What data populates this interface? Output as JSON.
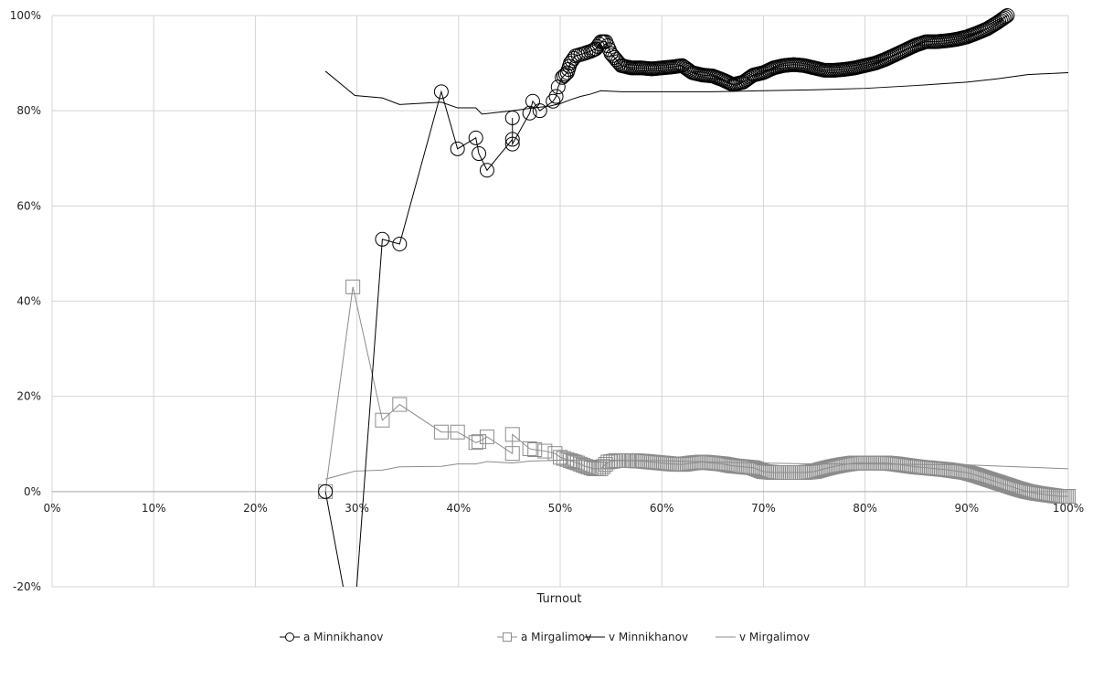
{
  "chart_data": {
    "type": "line",
    "title": "",
    "xlabel": "Turnout",
    "ylabel": "",
    "xlim": [
      0,
      100
    ],
    "ylim": [
      -20,
      100
    ],
    "x_ticks": [
      "0%",
      "10%",
      "20%",
      "30%",
      "40%",
      "50%",
      "60%",
      "70%",
      "80%",
      "90%",
      "100%"
    ],
    "y_ticks": [
      "-20%",
      "0%",
      "20%",
      "40%",
      "60%",
      "80%",
      "100%"
    ],
    "grid": true,
    "legend_position": "bottom",
    "series": [
      {
        "name": "a Minnikhanov",
        "color": "#000000",
        "marker": "circle",
        "points": [
          [
            26.9,
            0
          ],
          [
            29.6,
            -31
          ],
          [
            32.5,
            53
          ],
          [
            34.2,
            52
          ],
          [
            38.3,
            84
          ],
          [
            39.9,
            72
          ],
          [
            41.7,
            74.3
          ],
          [
            42,
            71
          ],
          [
            42.8,
            67.5
          ],
          [
            45.3,
            74
          ],
          [
            45.3,
            78.5
          ],
          [
            45.3,
            73
          ],
          [
            47,
            79.5
          ],
          [
            47.3,
            82
          ],
          [
            48,
            80
          ],
          [
            49.3,
            82
          ],
          [
            49.6,
            83
          ],
          [
            49.8,
            85
          ],
          [
            50.2,
            87
          ],
          [
            50.7,
            88
          ],
          [
            51,
            90
          ],
          [
            51.5,
            91.5
          ],
          [
            52.3,
            92
          ],
          [
            53,
            92.5
          ],
          [
            53.5,
            93
          ],
          [
            54,
            94.5
          ],
          [
            54.5,
            94.5
          ],
          [
            55,
            92
          ],
          [
            56,
            89.5
          ],
          [
            57,
            89
          ],
          [
            58,
            89
          ],
          [
            59,
            88.8
          ],
          [
            60,
            89
          ],
          [
            61,
            89.2
          ],
          [
            62,
            89.5
          ],
          [
            63,
            88
          ],
          [
            64,
            87.5
          ],
          [
            65,
            87.3
          ],
          [
            66,
            86.5
          ],
          [
            67,
            85.5
          ],
          [
            68,
            86
          ],
          [
            69,
            87.5
          ],
          [
            70,
            88
          ],
          [
            71,
            89
          ],
          [
            72,
            89.5
          ],
          [
            73,
            89.7
          ],
          [
            74,
            89.5
          ],
          [
            75,
            89
          ],
          [
            76,
            88.5
          ],
          [
            77,
            88.5
          ],
          [
            78,
            88.7
          ],
          [
            79,
            89
          ],
          [
            80,
            89.5
          ],
          [
            81,
            90
          ],
          [
            82,
            90.8
          ],
          [
            83,
            91.8
          ],
          [
            84,
            92.8
          ],
          [
            85,
            93.8
          ],
          [
            86,
            94.5
          ],
          [
            87,
            94.5
          ],
          [
            88,
            94.7
          ],
          [
            89,
            95
          ],
          [
            90,
            95.5
          ],
          [
            91,
            96.3
          ],
          [
            92,
            97.2
          ],
          [
            93,
            98.5
          ],
          [
            94,
            100
          ]
        ]
      },
      {
        "name": "a Mirgalimov",
        "color": "#8c8c8c",
        "marker": "square",
        "points": [
          [
            26.9,
            0
          ],
          [
            29.6,
            43
          ],
          [
            32.5,
            15
          ],
          [
            34.2,
            18.3
          ],
          [
            38.3,
            12.5
          ],
          [
            39.9,
            12.5
          ],
          [
            41.7,
            10.3
          ],
          [
            42,
            10.5
          ],
          [
            42.8,
            11.5
          ],
          [
            45.3,
            8
          ],
          [
            45.3,
            12
          ],
          [
            47,
            9
          ],
          [
            47.5,
            8.8
          ],
          [
            48.5,
            8.5
          ],
          [
            49.5,
            8
          ],
          [
            50,
            7.2
          ],
          [
            51,
            6.5
          ],
          [
            51.7,
            6
          ],
          [
            52.5,
            5.3
          ],
          [
            53.3,
            4.8
          ],
          [
            54,
            4.8
          ],
          [
            54.7,
            6.2
          ],
          [
            55.5,
            6.5
          ],
          [
            57,
            6.5
          ],
          [
            58,
            6.4
          ],
          [
            59,
            6.2
          ],
          [
            60,
            6
          ],
          [
            61,
            5.8
          ],
          [
            62,
            5.7
          ],
          [
            63,
            6
          ],
          [
            64,
            6.2
          ],
          [
            65,
            6
          ],
          [
            66,
            5.8
          ],
          [
            67,
            5.4
          ],
          [
            68,
            5.2
          ],
          [
            69,
            5
          ],
          [
            70,
            4.2
          ],
          [
            71,
            4
          ],
          [
            72,
            4
          ],
          [
            73,
            4
          ],
          [
            74,
            4
          ],
          [
            75,
            4.2
          ],
          [
            76,
            4.8
          ],
          [
            77,
            5.3
          ],
          [
            78,
            5.7
          ],
          [
            79,
            6
          ],
          [
            80,
            6
          ],
          [
            81,
            6
          ],
          [
            82,
            6
          ],
          [
            83,
            5.8
          ],
          [
            84,
            5.5
          ],
          [
            85,
            5.2
          ],
          [
            86,
            5
          ],
          [
            87,
            4.8
          ],
          [
            88,
            4.6
          ],
          [
            89,
            4.3
          ],
          [
            90,
            4
          ],
          [
            91,
            3.4
          ],
          [
            92,
            2.7
          ],
          [
            93,
            2
          ],
          [
            94,
            1.3
          ],
          [
            95,
            0.6
          ],
          [
            96,
            0
          ],
          [
            97,
            -0.4
          ],
          [
            98,
            -0.7
          ],
          [
            99,
            -1
          ],
          [
            100,
            -1
          ]
        ]
      },
      {
        "name": "v Minnikhanov",
        "color": "#000000",
        "marker": "none",
        "points": [
          [
            26.9,
            88.3
          ],
          [
            29.8,
            83.2
          ],
          [
            32.5,
            82.7
          ],
          [
            34.2,
            81.3
          ],
          [
            38.3,
            81.8
          ],
          [
            39.9,
            80.6
          ],
          [
            41.7,
            80.6
          ],
          [
            42.3,
            79.3
          ],
          [
            45.3,
            80
          ],
          [
            47,
            80.5
          ],
          [
            49,
            81
          ],
          [
            50,
            81.5
          ],
          [
            51,
            82.3
          ],
          [
            52,
            83
          ],
          [
            53,
            83.5
          ],
          [
            54,
            84.2
          ],
          [
            56,
            84
          ],
          [
            60,
            84
          ],
          [
            65,
            84
          ],
          [
            70,
            84.2
          ],
          [
            75,
            84.4
          ],
          [
            80,
            84.7
          ],
          [
            85,
            85.3
          ],
          [
            90,
            86
          ],
          [
            93,
            86.7
          ],
          [
            96,
            87.6
          ],
          [
            100,
            88
          ]
        ]
      },
      {
        "name": "v Mirgalimov",
        "color": "#8c8c8c",
        "marker": "none",
        "points": [
          [
            26.9,
            2.6
          ],
          [
            29.8,
            4.3
          ],
          [
            32.5,
            4.5
          ],
          [
            34.2,
            5.2
          ],
          [
            38.3,
            5.3
          ],
          [
            39.9,
            5.8
          ],
          [
            41.7,
            5.8
          ],
          [
            42.8,
            6.3
          ],
          [
            45.3,
            6
          ],
          [
            47,
            6.4
          ],
          [
            50,
            6.6
          ],
          [
            55,
            6.6
          ],
          [
            60,
            6.5
          ],
          [
            65,
            6.2
          ],
          [
            70,
            6
          ],
          [
            75,
            5.8
          ],
          [
            80,
            5.8
          ],
          [
            85,
            5.7
          ],
          [
            90,
            5.6
          ],
          [
            95,
            5.2
          ],
          [
            100,
            4.8
          ]
        ]
      }
    ]
  }
}
